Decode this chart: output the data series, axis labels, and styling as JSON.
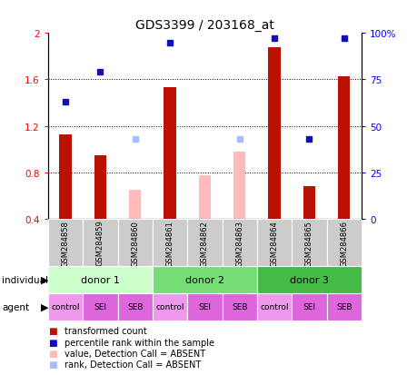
{
  "title": "GDS3399 / 203168_at",
  "samples": [
    "GSM284858",
    "GSM284859",
    "GSM284860",
    "GSM284861",
    "GSM284862",
    "GSM284863",
    "GSM284864",
    "GSM284865",
    "GSM284866"
  ],
  "red_values": [
    1.13,
    0.95,
    null,
    1.53,
    null,
    null,
    1.88,
    0.68,
    1.63
  ],
  "pink_values": [
    null,
    null,
    0.65,
    null,
    0.78,
    0.98,
    null,
    null,
    null
  ],
  "blue_dot_pct": [
    63,
    79,
    null,
    95,
    null,
    null,
    97,
    43,
    97
  ],
  "light_blue_dot_pct": [
    null,
    null,
    43,
    null,
    null,
    43,
    null,
    null,
    null
  ],
  "ylim": [
    0.4,
    2.0
  ],
  "y2lim": [
    0,
    100
  ],
  "yticks": [
    0.4,
    0.8,
    1.2,
    1.6,
    2.0
  ],
  "ytick_labels": [
    "0.4",
    "0.8",
    "1.2",
    "1.6",
    "2"
  ],
  "y2ticks": [
    0,
    25,
    50,
    75,
    100
  ],
  "y2tick_labels": [
    "0",
    "25",
    "50",
    "75",
    "100%"
  ],
  "donors": [
    {
      "label": "donor 1",
      "start": 0,
      "end": 3
    },
    {
      "label": "donor 2",
      "start": 3,
      "end": 6
    },
    {
      "label": "donor 3",
      "start": 6,
      "end": 9
    }
  ],
  "donor_colors": [
    "#ccffcc",
    "#77dd77",
    "#44bb44"
  ],
  "agents": [
    "control",
    "SEI",
    "SEB",
    "control",
    "SEI",
    "SEB",
    "control",
    "SEI",
    "SEB"
  ],
  "control_agent_color": "#ee99ee",
  "seiSEB_agent_color": "#dd66dd",
  "red_bar_color": "#bb1100",
  "pink_bar_color": "#ffbbbb",
  "blue_dot_color": "#1111bb",
  "light_blue_dot_color": "#aabbff",
  "sample_box_color": "#cccccc",
  "bar_width": 0.35,
  "grid_dotted_color": "black",
  "legend_items": [
    {
      "color": "#bb1100",
      "label": "transformed count"
    },
    {
      "color": "#1111bb",
      "label": "percentile rank within the sample"
    },
    {
      "color": "#ffbbbb",
      "label": "value, Detection Call = ABSENT"
    },
    {
      "color": "#aabbff",
      "label": "rank, Detection Call = ABSENT"
    }
  ]
}
